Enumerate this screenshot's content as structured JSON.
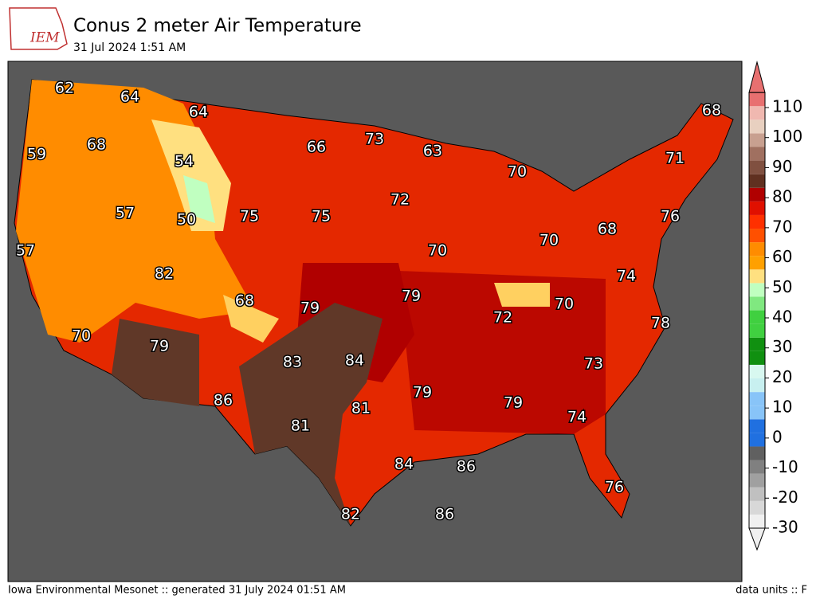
{
  "header": {
    "logo": "IEM",
    "title": "Conus 2 meter Air Temperature",
    "subtitle": "31 Jul 2024 1:51 AM"
  },
  "stations": [
    62,
    64,
    64,
    59,
    68,
    54,
    57,
    50,
    75,
    75,
    66,
    73,
    63,
    70,
    72,
    57,
    82,
    70,
    70,
    68,
    71,
    68,
    76,
    74,
    70,
    72,
    78,
    79,
    79,
    68,
    70,
    79,
    83,
    84,
    73,
    79,
    79,
    81,
    86,
    81,
    74,
    84,
    86,
    76,
    82,
    86
  ],
  "colorbar": {
    "lim": [
      -30,
      115
    ],
    "ticks": [
      -30,
      -20,
      -10,
      0,
      10,
      20,
      30,
      40,
      50,
      60,
      70,
      80,
      90,
      100,
      110
    ],
    "colors": [
      "#f0f0f0",
      "#d8d8d8",
      "#c0c0c0",
      "#a0a0a0",
      "#808080",
      "#606060",
      "#2070e0",
      "#2070e0",
      "#88c4f8",
      "#88c4f8",
      "#c8f0f0",
      "#d8f8f0",
      "#109010",
      "#109010",
      "#40d040",
      "#40d040",
      "#80e880",
      "#c0ffc0",
      "#ffe080",
      "#ffa000",
      "#ff8c00",
      "#ff5000",
      "#ff3000",
      "#e01000",
      "#b00000",
      "#603020",
      "#805040",
      "#a07060",
      "#c8a090",
      "#e8d0c0",
      "#f0b8b0",
      "#e87070"
    ]
  },
  "footer": {
    "left": "Iowa Environmental Mesonet :: generated 31 July 2024 01:51 AM",
    "right": "data units :: F"
  }
}
